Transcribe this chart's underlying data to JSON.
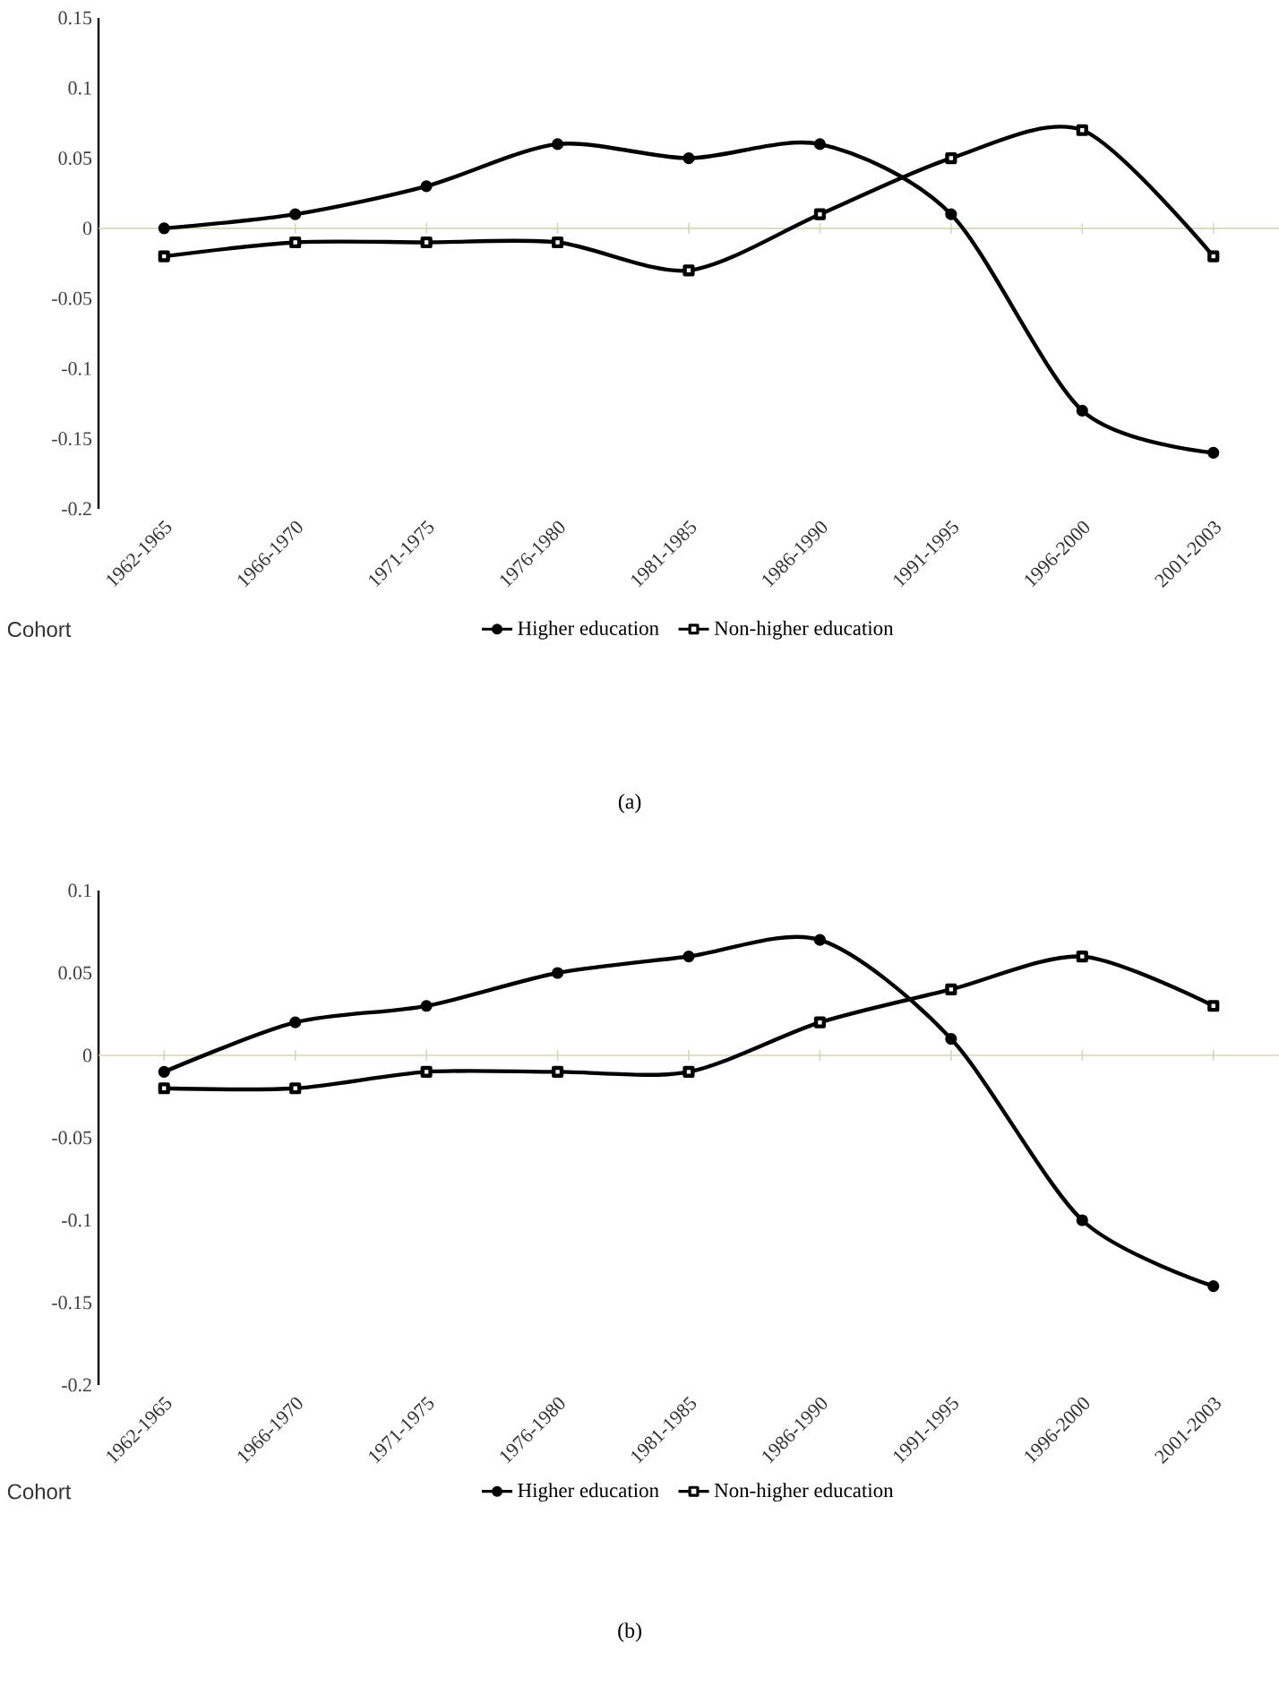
{
  "chart_data": [
    {
      "type": "line",
      "xlabel": "Cohort",
      "categories": [
        "1962-1965",
        "1966-1970",
        "1971-1975",
        "1976-1980",
        "1981-1985",
        "1986-1990",
        "1991-1995",
        "1996-2000",
        "2001-2003"
      ],
      "series": [
        {
          "name": "Higher education",
          "color": "#000000",
          "marker": "circle",
          "values": [
            0,
            0.01,
            0.03,
            0.06,
            0.05,
            0.06,
            0.01,
            -0.13,
            -0.16
          ]
        },
        {
          "name": "Non-higher education",
          "color": "#000000",
          "marker": "square",
          "values": [
            -0.02,
            -0.01,
            -0.01,
            -0.01,
            -0.03,
            0.01,
            0.05,
            0.07,
            -0.02
          ]
        }
      ],
      "ylim": [
        -0.2,
        0.15
      ],
      "yticks": [
        -0.2,
        -0.15,
        -0.1,
        -0.05,
        0,
        0.05,
        0.1,
        0.15
      ],
      "legend": "bottom",
      "annotations": [
        "(a)"
      ]
    },
    {
      "type": "line",
      "xlabel": "Cohort",
      "categories": [
        "1962-1965",
        "1966-1970",
        "1971-1975",
        "1976-1980",
        "1981-1985",
        "1986-1990",
        "1991-1995",
        "1996-2000",
        "2001-2003"
      ],
      "series": [
        {
          "name": "Higher education",
          "color": "#000000",
          "marker": "circle",
          "values": [
            -0.01,
            0.02,
            0.03,
            0.05,
            0.06,
            0.07,
            0.01,
            -0.1,
            -0.14
          ]
        },
        {
          "name": "Non-higher education",
          "color": "#000000",
          "marker": "square",
          "values": [
            -0.02,
            -0.02,
            -0.01,
            -0.01,
            -0.01,
            0.02,
            0.04,
            0.06,
            0.03
          ]
        }
      ],
      "ylim": [
        -0.2,
        0.1
      ],
      "yticks": [
        -0.2,
        -0.15,
        -0.1,
        -0.05,
        0,
        0.05,
        0.1
      ],
      "legend": "bottom",
      "annotations": [
        "(b)"
      ]
    }
  ]
}
